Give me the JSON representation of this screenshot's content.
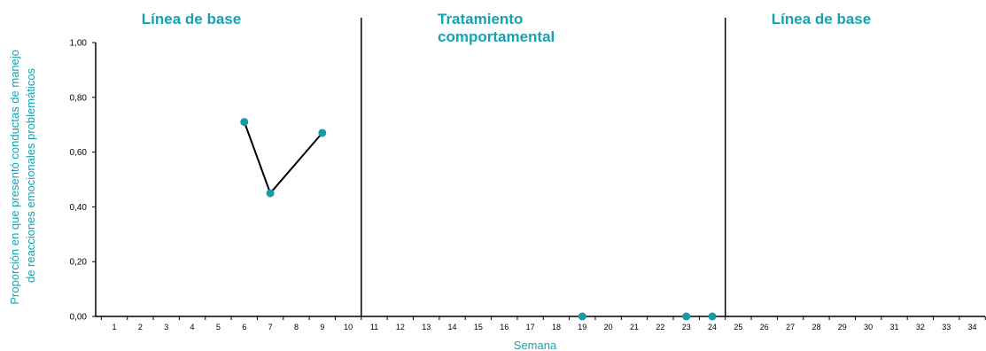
{
  "chart_data": {
    "type": "line",
    "phases": [
      {
        "label_lines": [
          "Línea de base"
        ],
        "from_week": 1,
        "to_week": 10
      },
      {
        "label_lines": [
          "Tratamiento",
          "comportamental"
        ],
        "from_week": 11,
        "to_week": 24
      },
      {
        "label_lines": [
          "Línea de base"
        ],
        "from_week": 25,
        "to_week": 34
      }
    ],
    "phase_change_after": [
      10,
      24
    ],
    "xlabel": "Semana",
    "ylabel_lines": [
      "Proporción en que presentó conductas de manejo",
      "de reacciones emocionales problemáticos"
    ],
    "x_ticks": [
      "1",
      "2",
      "3",
      "4",
      "5",
      "6",
      "7",
      "8",
      "9",
      "10",
      "11",
      "12",
      "13",
      "14",
      "15",
      "16",
      "17",
      "18",
      "19",
      "20",
      "21",
      "22",
      "23",
      "24",
      "25",
      "26",
      "27",
      "28",
      "29",
      "30",
      "31",
      "32",
      "33",
      "34"
    ],
    "y_ticks": [
      "0,00",
      "0,20",
      "0,40",
      "0,60",
      "0,80",
      "1,00"
    ],
    "ylim": [
      0,
      1
    ],
    "series": [
      {
        "points": [
          [
            6,
            0.71
          ],
          [
            7,
            0.45
          ],
          [
            9,
            0.67
          ]
        ],
        "connected": true
      },
      {
        "points": [
          [
            19,
            0
          ],
          [
            23,
            0
          ],
          [
            24,
            0
          ]
        ],
        "connected": false
      }
    ],
    "colors": {
      "marker": "#1a9aa6",
      "accent": "#17a2b1",
      "line": "#000000"
    }
  }
}
